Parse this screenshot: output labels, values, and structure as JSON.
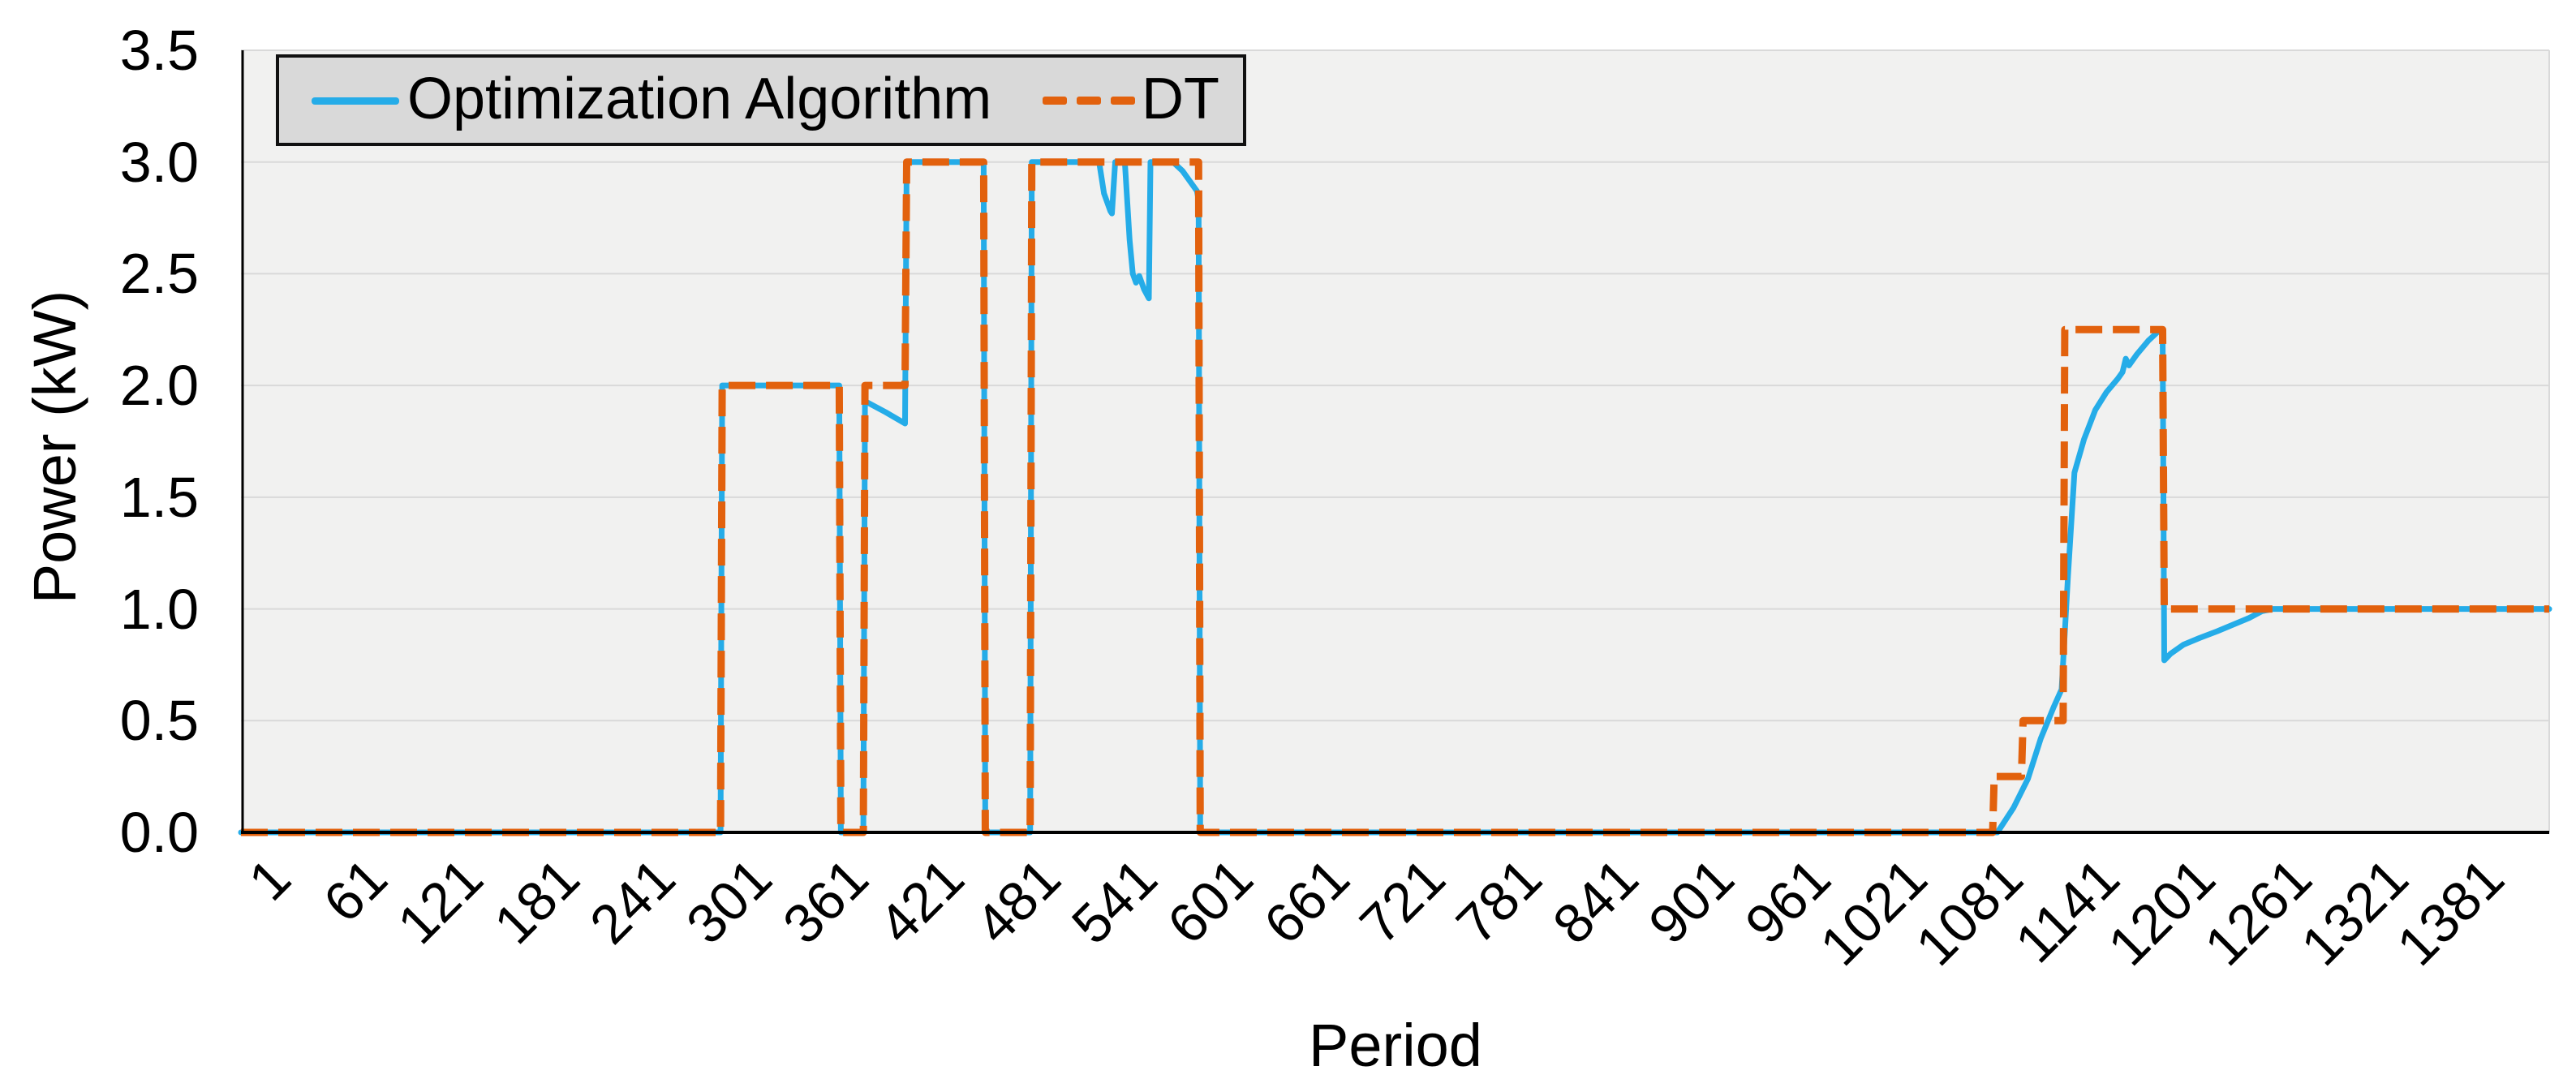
{
  "chart_data": {
    "type": "line",
    "title": "",
    "xlabel": "Period",
    "ylabel": "Power (kW)",
    "xlim": [
      1,
      1440
    ],
    "ylim": [
      0,
      3.5
    ],
    "x_ticks": [
      1,
      61,
      121,
      181,
      241,
      301,
      361,
      421,
      481,
      541,
      601,
      661,
      721,
      781,
      841,
      901,
      961,
      1021,
      1081,
      1141,
      1201,
      1261,
      1321,
      1381
    ],
    "y_ticks": [
      0.0,
      0.5,
      1.0,
      1.5,
      2.0,
      2.5,
      3.0,
      3.5
    ],
    "grid": "horizontal",
    "legend_position": "top-left",
    "colors": {
      "plot_background": "#f1f1f0",
      "gridline": "#d9d9d9",
      "axis": "#000000",
      "legend_background": "#d9d9d9",
      "legend_border": "#111111"
    },
    "series": [
      {
        "name": "Optimization Algorithm",
        "color": "#25ACE8",
        "style": "solid",
        "stroke_width": 7,
        "points": [
          [
            1,
            0
          ],
          [
            300,
            0
          ],
          [
            301,
            2
          ],
          [
            374,
            2
          ],
          [
            375,
            0
          ],
          [
            389,
            0
          ],
          [
            390,
            1.93
          ],
          [
            403,
            1.88
          ],
          [
            415,
            1.83
          ],
          [
            416,
            3
          ],
          [
            464,
            3
          ],
          [
            465,
            0
          ],
          [
            493,
            0
          ],
          [
            494,
            3
          ],
          [
            536,
            3
          ],
          [
            539,
            2.86
          ],
          [
            543,
            2.78
          ],
          [
            544,
            2.77
          ],
          [
            546,
            3
          ],
          [
            552,
            3
          ],
          [
            555,
            2.65
          ],
          [
            557,
            2.5
          ],
          [
            559,
            2.46
          ],
          [
            561,
            2.49
          ],
          [
            564,
            2.43
          ],
          [
            567,
            2.39
          ],
          [
            568,
            3
          ],
          [
            582,
            3
          ],
          [
            588,
            2.96
          ],
          [
            593,
            2.91
          ],
          [
            597,
            2.87
          ],
          [
            598,
            2.83
          ],
          [
            599,
            0
          ],
          [
            1096,
            0
          ],
          [
            1106,
            0.11
          ],
          [
            1115,
            0.24
          ],
          [
            1123,
            0.42
          ],
          [
            1131,
            0.56
          ],
          [
            1136,
            0.64
          ],
          [
            1140,
            1.15
          ],
          [
            1144,
            1.61
          ],
          [
            1150,
            1.76
          ],
          [
            1157,
            1.89
          ],
          [
            1164,
            1.97
          ],
          [
            1171,
            2.03
          ],
          [
            1174,
            2.06
          ],
          [
            1176,
            2.12
          ],
          [
            1178,
            2.09
          ],
          [
            1183,
            2.14
          ],
          [
            1190,
            2.2
          ],
          [
            1196,
            2.24
          ],
          [
            1199,
            2.25
          ],
          [
            1200,
            0.77
          ],
          [
            1204,
            0.8
          ],
          [
            1212,
            0.84
          ],
          [
            1222,
            0.87
          ],
          [
            1233,
            0.9
          ],
          [
            1243,
            0.93
          ],
          [
            1253,
            0.96
          ],
          [
            1261,
            0.99
          ],
          [
            1268,
            1
          ],
          [
            1440,
            1
          ]
        ]
      },
      {
        "name": "DT",
        "color": "#E2610D",
        "style": "dashed",
        "stroke_width": 9,
        "dash": "33 13",
        "points": [
          [
            1,
            0
          ],
          [
            300,
            0
          ],
          [
            301,
            2
          ],
          [
            374,
            2
          ],
          [
            375,
            0
          ],
          [
            389,
            0
          ],
          [
            390,
            2
          ],
          [
            415,
            2
          ],
          [
            416,
            3
          ],
          [
            464,
            3
          ],
          [
            465,
            0
          ],
          [
            493,
            0
          ],
          [
            494,
            3
          ],
          [
            598,
            3
          ],
          [
            599,
            0
          ],
          [
            1093,
            0
          ],
          [
            1094,
            0.25
          ],
          [
            1111,
            0.25
          ],
          [
            1112,
            0.5
          ],
          [
            1137,
            0.5
          ],
          [
            1138,
            2.25
          ],
          [
            1199,
            2.25
          ],
          [
            1200,
            1
          ],
          [
            1440,
            1
          ]
        ]
      }
    ]
  }
}
